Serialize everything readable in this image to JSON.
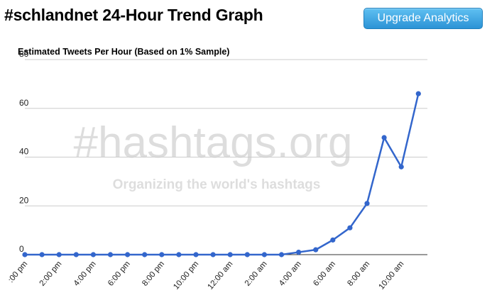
{
  "header": {
    "title": "#schlandnet 24-Hour Trend Graph",
    "upgrade_label": "Upgrade Analytics"
  },
  "watermark": {
    "logo_text": "#hashtags.org",
    "tagline": "Organizing the world's hashtags"
  },
  "chart_data": {
    "type": "line",
    "title": "Estimated Tweets Per Hour (Based on 1% Sample)",
    "xlabel": "",
    "ylabel": "",
    "ylim": [
      0,
      80
    ],
    "yticks": [
      "0",
      "20",
      "40",
      "60",
      "80"
    ],
    "grid": true,
    "legend": "none",
    "x_tick_labels": [
      ":00 pm",
      "2:00 pm",
      "4:00 pm",
      "6:00 pm",
      "8:00 pm",
      "10:00 pm",
      "12:00 am",
      "2:00 am",
      "4:00 am",
      "6:00 am",
      "8:00 am",
      "10:00 am"
    ],
    "x_tick_every": 2,
    "series": [
      {
        "color": "#3366cc",
        "values": [
          0,
          0,
          0,
          0,
          0,
          0,
          0,
          0,
          0,
          0,
          0,
          0,
          0,
          0,
          0,
          0,
          1,
          2,
          6,
          11,
          21,
          48,
          36,
          66
        ]
      }
    ]
  }
}
